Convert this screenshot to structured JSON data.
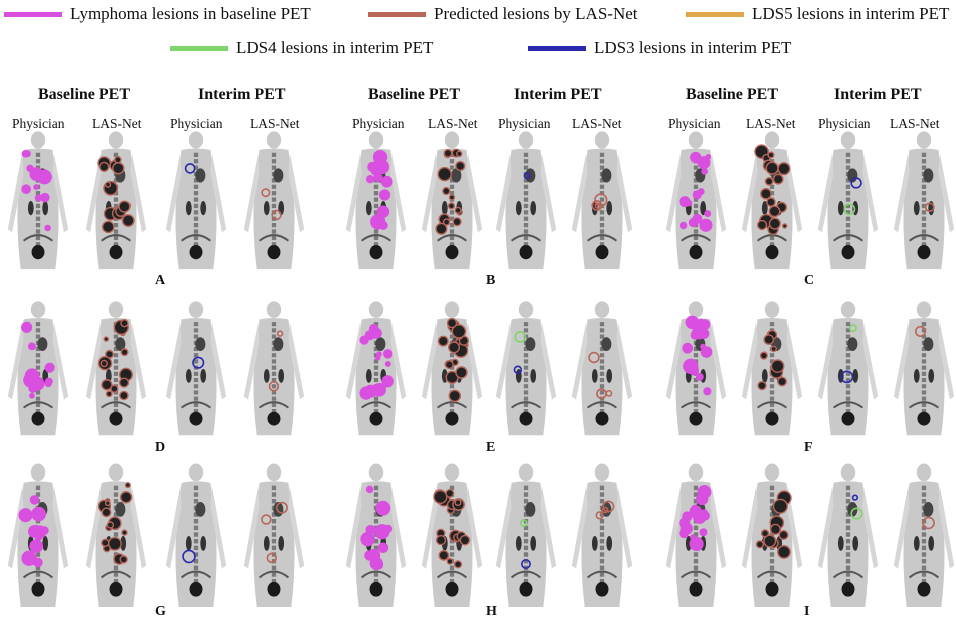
{
  "legend": [
    {
      "label": "Lymphoma lesions in baseline PET",
      "color": "#d94fe0"
    },
    {
      "label": "Predicted lesions by LAS-Net",
      "color": "#b8665a"
    },
    {
      "label": "LDS5 lesions in interim PET",
      "color": "#e0a64a"
    },
    {
      "label": "LDS4 lesions in interim PET",
      "color": "#7fd46a"
    },
    {
      "label": "LDS3 lesions in interim PET",
      "color": "#2929b0"
    }
  ],
  "columns": [
    {
      "group_labels": [
        "Baseline PET",
        "Interim PET"
      ],
      "sub_labels": [
        "Physician",
        "LAS-Net",
        "Physician",
        "LAS-Net"
      ],
      "rows": [
        "A",
        "D",
        "G"
      ]
    },
    {
      "group_labels": [
        "Baseline PET",
        "Interim PET"
      ],
      "sub_labels": [
        "Physician",
        "LAS-Net",
        "Physician",
        "LAS-Net"
      ],
      "rows": [
        "B",
        "E",
        "H"
      ]
    },
    {
      "group_labels": [
        "Baseline PET",
        "Interim PET"
      ],
      "sub_labels": [
        "Physician",
        "LAS-Net",
        "Physician",
        "LAS-Net"
      ],
      "rows": [
        "C",
        "F",
        "I"
      ]
    }
  ],
  "colors": {
    "body": "#c9c9c9",
    "organ": "#1a1a1a",
    "lesion_baseline": "#d94fe0",
    "lesion_predicted": "#b8665a",
    "lds5": "#e0a64a",
    "lds4": "#7fd46a",
    "lds3": "#2929b0"
  }
}
